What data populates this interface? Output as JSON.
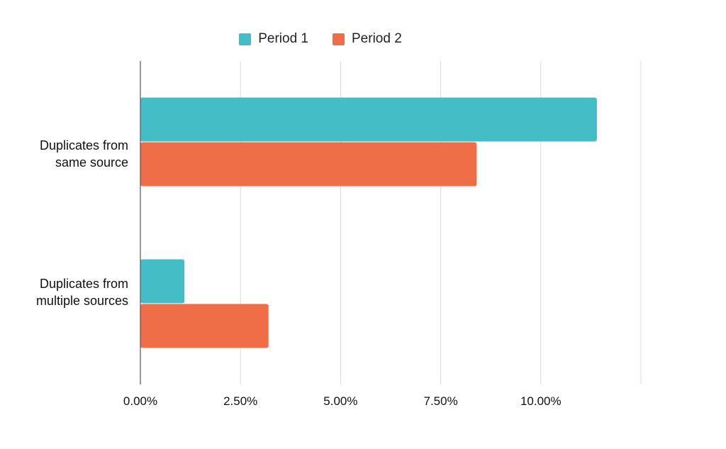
{
  "chart_data": {
    "type": "bar",
    "orientation": "horizontal",
    "categories": [
      "Duplicates from\nsame source",
      "Duplicates from\nmultiple sources"
    ],
    "series": [
      {
        "name": "Period 1",
        "color": "#45BDC6",
        "values": [
          11.4,
          1.1
        ]
      },
      {
        "name": "Period 2",
        "color": "#EF6D47",
        "values": [
          8.4,
          3.2
        ]
      }
    ],
    "xlim": [
      0,
      12.5
    ],
    "xticks": [
      0,
      2.5,
      5,
      7.5,
      10
    ],
    "xtick_labels": [
      "0.00%",
      "2.50%",
      "5.00%",
      "7.50%",
      "10.00%"
    ],
    "grid": true,
    "legend_position": "top"
  }
}
